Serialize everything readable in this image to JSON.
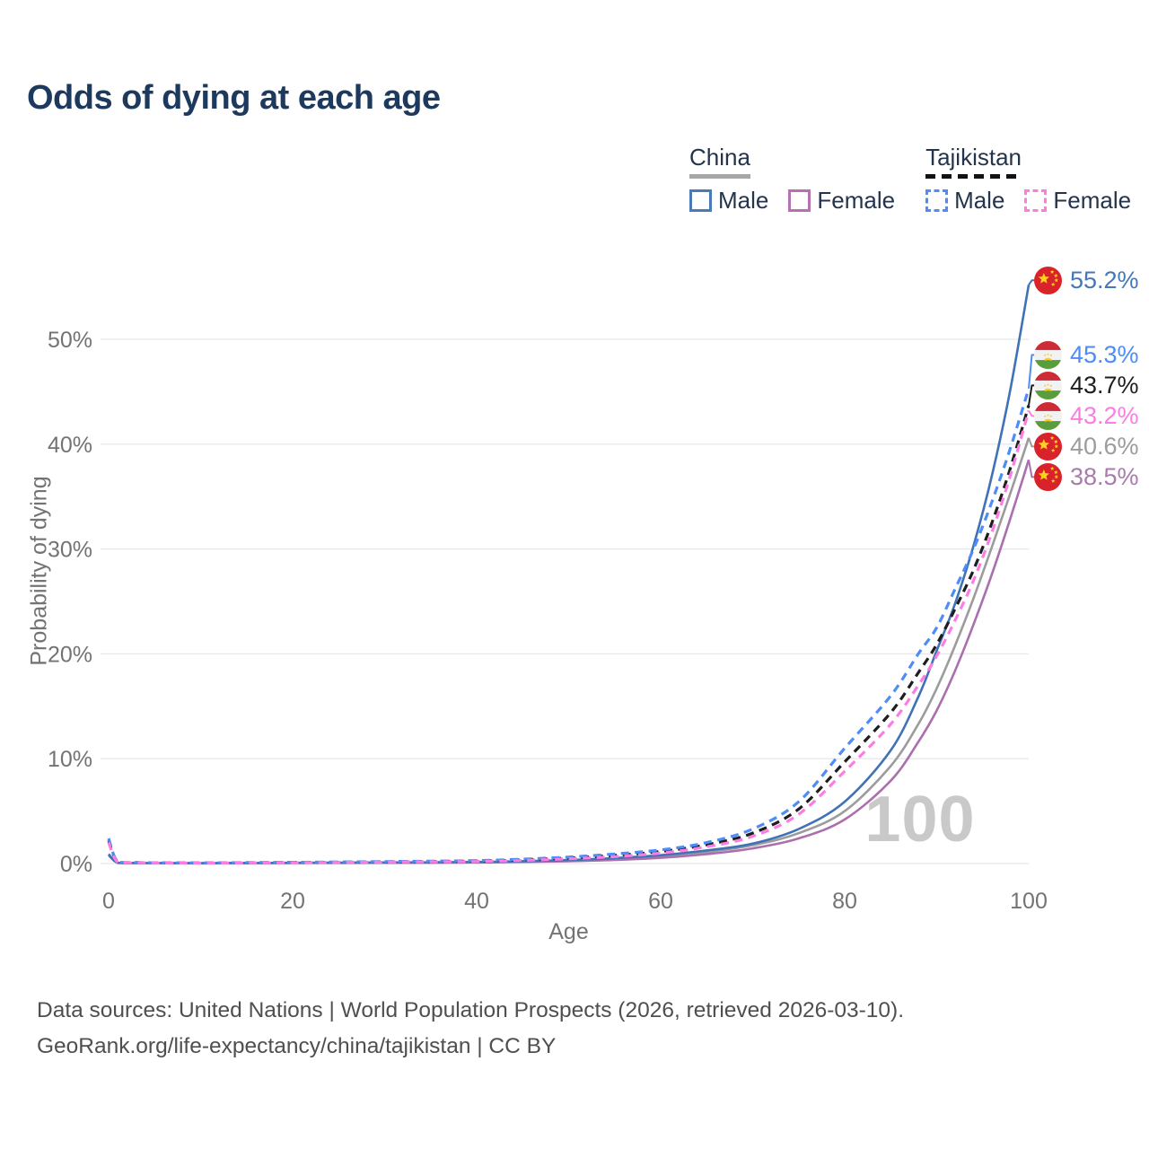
{
  "title": "Odds of dying at each age",
  "watermark": "100",
  "legend": {
    "groups": [
      {
        "label": "China",
        "underline_style": "solid",
        "underline_color": "#a6a6a6",
        "items": [
          {
            "label": "Male",
            "color": "#4a7ab8",
            "dashed": false
          },
          {
            "label": "Female",
            "color": "#b671b3",
            "dashed": false
          }
        ]
      },
      {
        "label": "Tajikistan",
        "underline_style": "dashed",
        "underline_color": "#121212",
        "items": [
          {
            "label": "Male",
            "color": "#4e8cf7",
            "dashed": true
          },
          {
            "label": "Female",
            "color": "#fb7de4",
            "dashed": true
          }
        ]
      }
    ]
  },
  "footer": {
    "line1": "Data sources: United Nations | World Population Prospects (2026, retrieved 2026-03-10).",
    "line2": "GeoRank.org/life-expectancy/china/tajikistan | CC BY"
  },
  "chart_data": {
    "type": "line",
    "title": "Odds of dying at each age",
    "xlabel": "Age",
    "ylabel": "Probability of dying",
    "xlim": [
      0,
      100
    ],
    "ylim": [
      0,
      57
    ],
    "grid": true,
    "x_ticks": [
      0,
      20,
      40,
      60,
      80,
      100
    ],
    "y_ticks": [
      {
        "value": 0,
        "label": "0%"
      },
      {
        "value": 10,
        "label": "10%"
      },
      {
        "value": 20,
        "label": "20%"
      },
      {
        "value": 30,
        "label": "30%"
      },
      {
        "value": 40,
        "label": "40%"
      },
      {
        "value": 50,
        "label": "50%"
      }
    ],
    "ages": [
      0,
      1,
      3,
      5,
      10,
      15,
      20,
      25,
      30,
      35,
      40,
      45,
      50,
      55,
      60,
      65,
      70,
      75,
      80,
      85,
      88,
      90,
      92,
      94,
      96,
      98,
      100
    ],
    "series": [
      {
        "id": "china_male",
        "country": "China",
        "sex": "Male",
        "color": "#3f72b6",
        "dashed": false,
        "flag": "china",
        "values": [
          0.9,
          0.08,
          0.05,
          0.04,
          0.03,
          0.05,
          0.07,
          0.08,
          0.1,
          0.12,
          0.15,
          0.22,
          0.33,
          0.52,
          0.8,
          1.25,
          1.9,
          3.3,
          5.9,
          10.8,
          15.9,
          20.3,
          24.8,
          30.3,
          37.0,
          45.2,
          55.2
        ],
        "end_label": {
          "text": "55.2%",
          "value": 55.2,
          "color": "#4577b8"
        }
      },
      {
        "id": "tajikistan_male",
        "country": "Tajikistan",
        "sex": "Male",
        "color": "#4e8cf7",
        "dashed": true,
        "flag": "tajikistan",
        "values": [
          2.4,
          0.16,
          0.1,
          0.08,
          0.06,
          0.09,
          0.12,
          0.15,
          0.19,
          0.23,
          0.28,
          0.42,
          0.62,
          0.92,
          1.3,
          2.0,
          3.3,
          5.9,
          11.0,
          16.0,
          20.0,
          22.5,
          26.2,
          30.0,
          34.5,
          39.6,
          45.3
        ],
        "end_label": {
          "text": "45.3%",
          "value": 45.3,
          "color": "#4e8cf7"
        }
      },
      {
        "id": "tajikistan_both",
        "country": "Tajikistan",
        "sex": "Both",
        "color": "#1e1e1e",
        "dashed": true,
        "flag": "tajikistan",
        "values": [
          2.2,
          0.14,
          0.09,
          0.07,
          0.05,
          0.07,
          0.1,
          0.13,
          0.16,
          0.2,
          0.24,
          0.36,
          0.53,
          0.78,
          1.15,
          1.8,
          2.9,
          5.2,
          9.7,
          14.4,
          18.2,
          20.9,
          24.3,
          28.0,
          32.5,
          37.7,
          43.7
        ],
        "end_label": {
          "text": "43.7%",
          "value": 43.7,
          "color": "#1e1e1e"
        }
      },
      {
        "id": "tajikistan_female",
        "country": "Tajikistan",
        "sex": "Female",
        "color": "#fb7de4",
        "dashed": true,
        "flag": "tajikistan",
        "values": [
          2.0,
          0.12,
          0.08,
          0.06,
          0.04,
          0.06,
          0.08,
          0.11,
          0.14,
          0.17,
          0.2,
          0.3,
          0.45,
          0.66,
          1.0,
          1.6,
          2.6,
          4.7,
          8.8,
          13.3,
          17.0,
          19.8,
          23.2,
          27.0,
          31.6,
          37.0,
          43.2
        ],
        "end_label": {
          "text": "43.2%",
          "value": 43.2,
          "color": "#fb7de4"
        }
      },
      {
        "id": "china_both",
        "country": "China",
        "sex": "Both",
        "color": "#9c9c9c",
        "dashed": false,
        "flag": "china",
        "values": [
          0.85,
          0.07,
          0.05,
          0.04,
          0.03,
          0.04,
          0.06,
          0.07,
          0.09,
          0.1,
          0.12,
          0.18,
          0.27,
          0.42,
          0.65,
          1.1,
          1.75,
          2.9,
          5.0,
          9.3,
          13.3,
          16.7,
          20.8,
          25.3,
          30.2,
          35.3,
          40.6
        ],
        "end_label": {
          "text": "40.6%",
          "value": 40.6,
          "color": "#9c9c9c"
        }
      },
      {
        "id": "china_female",
        "country": "China",
        "sex": "Female",
        "color": "#ab6fae",
        "dashed": false,
        "flag": "china",
        "values": [
          0.8,
          0.06,
          0.04,
          0.03,
          0.02,
          0.03,
          0.05,
          0.06,
          0.07,
          0.08,
          0.1,
          0.15,
          0.22,
          0.34,
          0.55,
          0.9,
          1.45,
          2.4,
          4.2,
          7.9,
          11.6,
          14.6,
          18.4,
          22.8,
          27.6,
          32.9,
          38.5
        ],
        "end_label": {
          "text": "38.5%",
          "value": 38.5,
          "color": "#a97bac"
        }
      }
    ],
    "legend_position": "top-right"
  }
}
